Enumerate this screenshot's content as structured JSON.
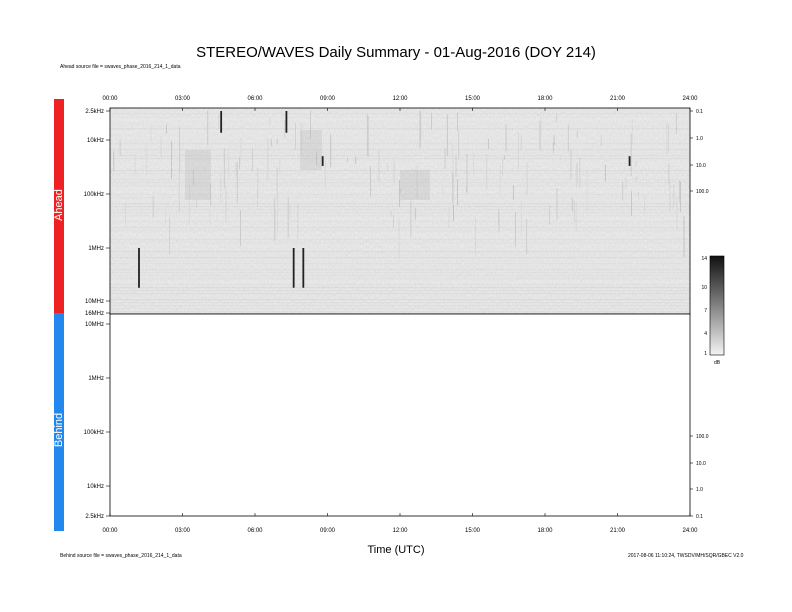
{
  "chart_data": {
    "type": "heatmap",
    "title": "STEREO/WAVES Daily Summary - 01-Aug-2016 (DOY 214)",
    "xlabel": "Time (UTC)",
    "x_ticks": [
      "00:00",
      "03:00",
      "06:00",
      "09:00",
      "12:00",
      "15:00",
      "18:00",
      "21:00",
      "24:00"
    ],
    "xlim_hours": [
      0,
      24
    ],
    "panels": [
      {
        "name": "Ahead",
        "color": "#ee2222",
        "freq_labels": [
          "2.5kHz",
          "10kHz",
          "100kHz",
          "1MHz",
          "10MHz",
          "16MHz"
        ],
        "right_labels": [
          "0.1",
          "1.0",
          "10.0",
          "100.0"
        ],
        "bursts": [
          {
            "time_h": 4.6,
            "freq_top": "2.5kHz",
            "freq_bottom": "10kHz"
          },
          {
            "time_h": 7.3,
            "freq_top": "2.5kHz",
            "freq_bottom": "10kHz"
          },
          {
            "time_h": 8.8,
            "freq_top": "10kHz",
            "freq_bottom": "100kHz"
          },
          {
            "time_h": 8.0,
            "freq_top": "1MHz",
            "freq_bottom": "10MHz"
          },
          {
            "time_h": 7.6,
            "freq_top": "1MHz",
            "freq_bottom": "10MHz"
          },
          {
            "time_h": 1.2,
            "freq_top": "1MHz",
            "freq_bottom": "10MHz"
          },
          {
            "time_h": 21.5,
            "freq_top": "10kHz",
            "freq_bottom": "100kHz"
          }
        ]
      },
      {
        "name": "Behind",
        "color": "#2288ee",
        "freq_labels": [
          "16MHz",
          "10MHz",
          "1MHz",
          "100kHz",
          "10kHz",
          "2.5kHz"
        ],
        "right_labels": [
          "100.0",
          "10.0",
          "1.0",
          "0.1"
        ],
        "bursts": []
      }
    ],
    "colorbar": {
      "ticks": [
        "14",
        "10",
        "7",
        "4",
        "1"
      ],
      "unit": "dB",
      "range": [
        1,
        14
      ]
    }
  },
  "notes": {
    "ahead_source": "Ahead source file = swaves_phase_2016_214_1_data",
    "behind_source": "Behind source file = swaves_phase_2016_214_1_data",
    "footer_right": "2017-08-06 11:10:24, TWSDV/MH/SQR/GBEC V2.0"
  }
}
